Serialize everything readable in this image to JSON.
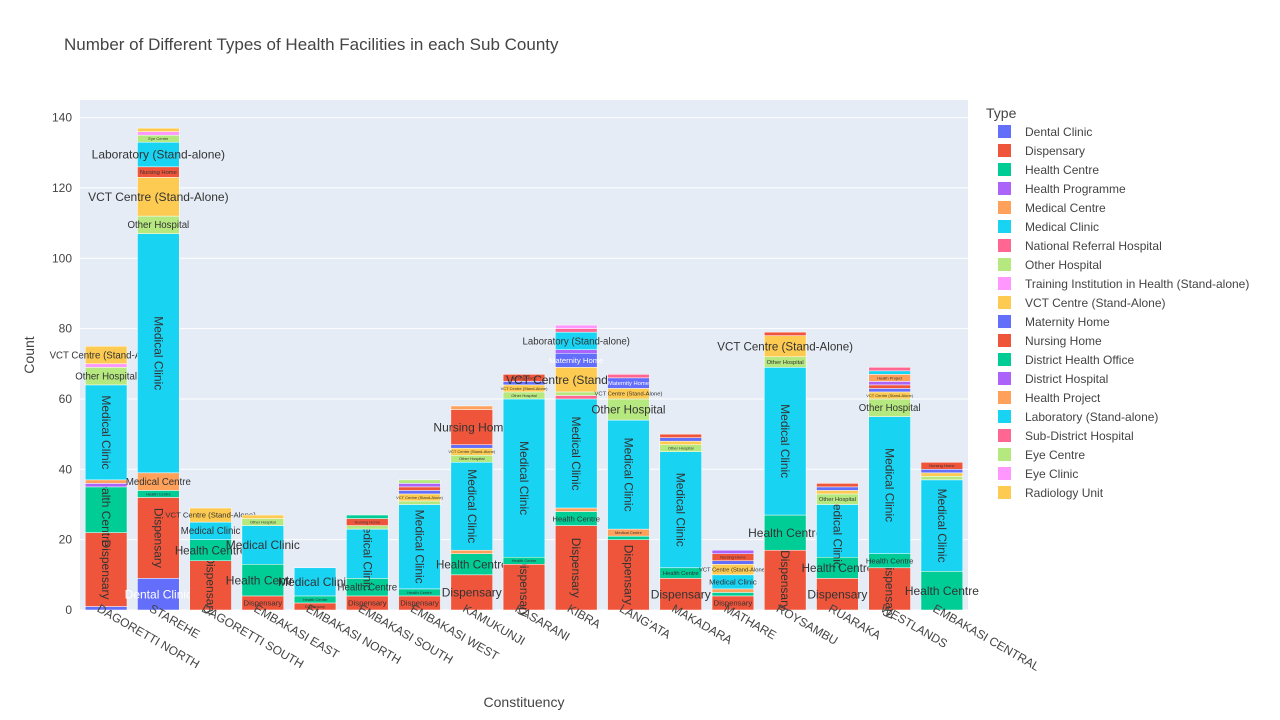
{
  "chart_data": {
    "type": "bar",
    "barmode": "stack",
    "title": "Number of Different Types of Health Facilities in each Sub County",
    "xlabel": "Constituency",
    "ylabel": "Count",
    "ylim": [
      0,
      145
    ],
    "yticks": [
      0,
      20,
      40,
      60,
      80,
      100,
      120,
      140
    ],
    "grid": true,
    "legend_title": "Type",
    "legend_position": "right",
    "categories": [
      "DAGORETTI NORTH",
      "STAREHE",
      "DAGORETTI SOUTH",
      "EMBAKASI EAST",
      "EMBAKASI NORTH",
      "EMBAKASI SOUTH",
      "EMBAKASI WEST",
      "KAMUKUNJI",
      "KASARANI",
      "KIBRA",
      "LANG'ATA",
      "MAKADARA",
      "MATHARE",
      "ROYSAMBU",
      "RUARAKA",
      "WESTLANDS",
      "EMBAKASI CENTRAL"
    ],
    "series": [
      {
        "name": "Dental Clinic",
        "color": "#636efa",
        "values": [
          1,
          9,
          0,
          0,
          0,
          0,
          0,
          0,
          0,
          0,
          0,
          0,
          0,
          0,
          0,
          0,
          0
        ]
      },
      {
        "name": "Dispensary",
        "color": "#EF553B",
        "values": [
          21,
          23,
          14,
          4,
          2,
          4,
          4,
          10,
          13,
          24,
          20,
          9,
          4,
          17,
          9,
          12,
          0
        ]
      },
      {
        "name": "Health Centre",
        "color": "#00cc96",
        "values": [
          13,
          2,
          6,
          9,
          2,
          5,
          2,
          6,
          2,
          4,
          1,
          3,
          1,
          10,
          6,
          4,
          11
        ]
      },
      {
        "name": "Health Programme",
        "color": "#ab63fa",
        "values": [
          1,
          0,
          0,
          0,
          0,
          0,
          0,
          0,
          0,
          0,
          0,
          0,
          0,
          0,
          0,
          0,
          0
        ]
      },
      {
        "name": "Medical Centre",
        "color": "#FFA15A",
        "values": [
          1,
          5,
          0,
          0,
          0,
          0,
          0,
          1,
          0,
          1,
          2,
          0,
          1,
          0,
          0,
          0,
          0
        ]
      },
      {
        "name": "Medical Clinic",
        "color": "#19d3f3",
        "values": [
          27,
          68,
          5,
          11,
          8,
          14,
          24,
          25,
          45,
          31,
          31,
          33,
          4,
          42,
          15,
          39,
          26
        ]
      },
      {
        "name": "National Referral Hospital",
        "color": "#FF6692",
        "values": [
          0,
          0,
          0,
          0,
          0,
          0,
          0,
          0,
          0,
          1,
          0,
          0,
          0,
          0,
          0,
          0,
          0
        ]
      },
      {
        "name": "Other Hospital",
        "color": "#B6E880",
        "values": [
          5,
          5,
          0,
          2,
          0,
          1,
          1,
          2,
          2,
          1,
          6,
          2,
          0,
          3,
          3,
          5,
          1
        ]
      },
      {
        "name": "Training Institution in Health (Stand-alone)",
        "color": "#FF97FF",
        "values": [
          1,
          0,
          0,
          0,
          0,
          0,
          0,
          0,
          0,
          0,
          0,
          0,
          0,
          0,
          0,
          0,
          0
        ]
      },
      {
        "name": "VCT Centre (Stand-Alone)",
        "color": "#FECB52",
        "values": [
          5,
          11,
          4,
          1,
          0,
          0,
          2,
          2,
          2,
          7,
          3,
          1,
          3,
          6,
          1,
          2,
          1
        ]
      },
      {
        "name": "Maternity Home",
        "color": "#636efa",
        "values": [
          0,
          0,
          0,
          0,
          0,
          0,
          1,
          1,
          1,
          4,
          3,
          1,
          1,
          0,
          1,
          1,
          1
        ]
      },
      {
        "name": "Nursing Home",
        "color": "#EF553B",
        "values": [
          0,
          3,
          0,
          0,
          0,
          2,
          1,
          10,
          2,
          0,
          0,
          1,
          2,
          1,
          1,
          1,
          2
        ]
      },
      {
        "name": "District Health Office",
        "color": "#00cc96",
        "values": [
          0,
          0,
          0,
          0,
          0,
          1,
          0,
          0,
          0,
          0,
          0,
          0,
          0,
          0,
          0,
          0,
          0
        ]
      },
      {
        "name": "District Hospital",
        "color": "#ab63fa",
        "values": [
          0,
          0,
          0,
          0,
          0,
          0,
          1,
          0,
          0,
          1,
          0,
          0,
          1,
          0,
          0,
          1,
          0
        ]
      },
      {
        "name": "Health Project",
        "color": "#FFA15A",
        "values": [
          0,
          0,
          0,
          0,
          0,
          0,
          0,
          1,
          0,
          0,
          0,
          0,
          0,
          0,
          0,
          2,
          0
        ]
      },
      {
        "name": "Laboratory (Stand-alone)",
        "color": "#19d3f3",
        "values": [
          0,
          7,
          0,
          0,
          0,
          0,
          0,
          0,
          0,
          5,
          0,
          0,
          0,
          0,
          0,
          1,
          0
        ]
      },
      {
        "name": "Sub-District Hospital",
        "color": "#FF6692",
        "values": [
          0,
          0,
          0,
          0,
          0,
          0,
          0,
          0,
          0,
          1,
          1,
          0,
          0,
          0,
          0,
          1,
          0
        ]
      },
      {
        "name": "Eye Centre",
        "color": "#B6E880",
        "values": [
          0,
          2,
          0,
          0,
          0,
          0,
          1,
          0,
          0,
          0,
          0,
          0,
          0,
          0,
          0,
          0,
          0
        ]
      },
      {
        "name": "Eye Clinic",
        "color": "#FF97FF",
        "values": [
          0,
          1,
          0,
          0,
          0,
          0,
          0,
          0,
          0,
          1,
          0,
          0,
          0,
          0,
          0,
          0,
          0
        ]
      },
      {
        "name": "Radiology Unit",
        "color": "#FECB52",
        "values": [
          0,
          1,
          0,
          0,
          0,
          0,
          0,
          0,
          0,
          0,
          0,
          0,
          0,
          0,
          0,
          0,
          0
        ]
      }
    ]
  }
}
